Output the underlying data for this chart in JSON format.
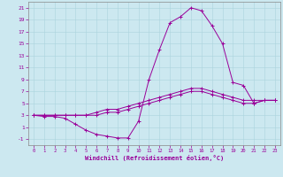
{
  "xlabel": "Windchill (Refroidissement éolien,°C)",
  "bg_color": "#cce8f0",
  "line_color": "#990099",
  "xlim": [
    -0.5,
    23.5
  ],
  "ylim": [
    -2,
    22
  ],
  "xticks": [
    0,
    1,
    2,
    3,
    4,
    5,
    6,
    7,
    8,
    9,
    10,
    11,
    12,
    13,
    14,
    15,
    16,
    17,
    18,
    19,
    20,
    21,
    22,
    23
  ],
  "yticks": [
    -1,
    1,
    3,
    5,
    7,
    9,
    11,
    13,
    15,
    17,
    19,
    21
  ],
  "line1_x": [
    0,
    1,
    2,
    3,
    4,
    5,
    6,
    7,
    8,
    9,
    10,
    11,
    12,
    13,
    14,
    15,
    16,
    17,
    18,
    19,
    20,
    21,
    22,
    23
  ],
  "line1_y": [
    3,
    3,
    3,
    3,
    3,
    3,
    3.5,
    4,
    4,
    4.5,
    5,
    5.5,
    6,
    6.5,
    7,
    7.5,
    7.5,
    7,
    6.5,
    6,
    5.5,
    5.5,
    5.5,
    5.5
  ],
  "line2_x": [
    0,
    1,
    2,
    3,
    4,
    5,
    6,
    7,
    8,
    9,
    10,
    11,
    12,
    13,
    14,
    15,
    16,
    17,
    18,
    19,
    20,
    21,
    22,
    23
  ],
  "line2_y": [
    3,
    3,
    3,
    3,
    3,
    3,
    3,
    3.5,
    3.5,
    4,
    4.5,
    5,
    5.5,
    6,
    6.5,
    7,
    7,
    6.5,
    6,
    5.5,
    5,
    5,
    5.5,
    5.5
  ],
  "line3_x": [
    0,
    1,
    2,
    3,
    4,
    5,
    6,
    7,
    8,
    9,
    10,
    11,
    12,
    13,
    14,
    15,
    16,
    17,
    18,
    19,
    20,
    21,
    22,
    23
  ],
  "line3_y": [
    3,
    2.8,
    2.8,
    2.5,
    1.5,
    0.5,
    -0.2,
    -0.5,
    -0.8,
    -0.8,
    2,
    9,
    14,
    18.5,
    19.5,
    21,
    20.5,
    18,
    15,
    8.5,
    8,
    5,
    5.5,
    5.5
  ]
}
